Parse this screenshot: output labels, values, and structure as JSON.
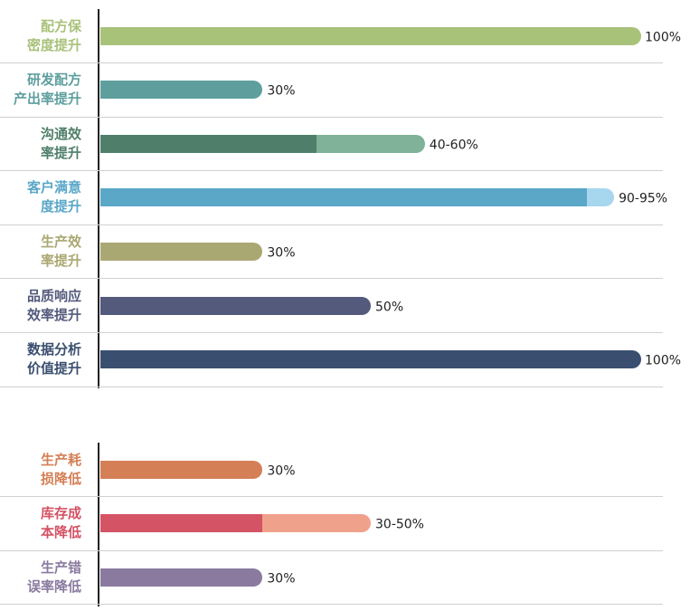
{
  "chart_data": [
    {
      "type": "bar",
      "orientation": "horizontal",
      "xlim": [
        0,
        100
      ],
      "unit": "%",
      "categories": [
        [
          "配方保",
          "密度提升"
        ],
        [
          "研发配方",
          "产出率提升"
        ],
        [
          "沟通效",
          "率提升"
        ],
        [
          "客户满意",
          "度提升"
        ],
        [
          "生产效",
          "率提升"
        ],
        [
          "品质响应",
          "效率提升"
        ],
        [
          "数据分析",
          "价值提升"
        ]
      ],
      "values": [
        [
          100,
          100
        ],
        [
          30,
          30
        ],
        [
          40,
          60
        ],
        [
          90,
          95
        ],
        [
          30,
          30
        ],
        [
          50,
          50
        ],
        [
          100,
          100
        ]
      ],
      "value_labels": [
        "100%",
        "30%",
        "40-60%",
        "90-95%",
        "30%",
        "50%",
        "100%"
      ],
      "colors": [
        [
          "#a9c27a",
          "#a9c27a"
        ],
        [
          "#5e9f9e",
          "#5e9f9e"
        ],
        [
          "#4f7f6a",
          "#7fb298"
        ],
        [
          "#5aa7c8",
          "#a7d6ef"
        ],
        [
          "#aaa872",
          "#aaa872"
        ],
        [
          "#545a7c",
          "#545a7c"
        ],
        [
          "#3a4f6f",
          "#3a4f6f"
        ]
      ]
    },
    {
      "type": "bar",
      "orientation": "horizontal",
      "xlim": [
        0,
        100
      ],
      "unit": "%",
      "categories": [
        [
          "生产耗",
          "损降低"
        ],
        [
          "库存成",
          "本降低"
        ],
        [
          "生产错",
          "误率降低"
        ]
      ],
      "values": [
        [
          30,
          30
        ],
        [
          30,
          50
        ],
        [
          30,
          30
        ]
      ],
      "value_labels": [
        "30%",
        "30-50%",
        "30%"
      ],
      "colors": [
        [
          "#d47f55",
          "#d47f55"
        ],
        [
          "#d45365",
          "#f0a18b"
        ],
        [
          "#8a7a9f",
          "#8a7a9f"
        ]
      ]
    }
  ]
}
